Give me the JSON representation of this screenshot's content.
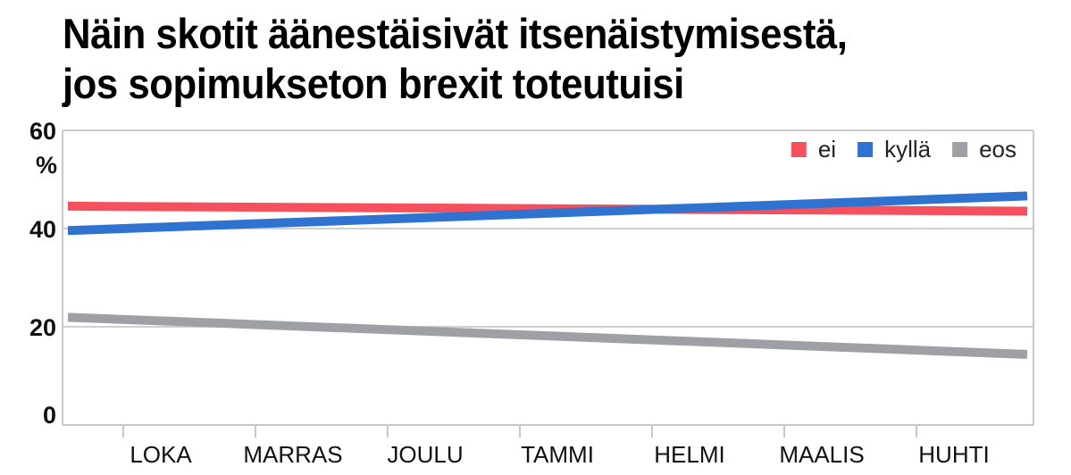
{
  "title_line1": "Näin skotit äänestäisivät itsenäistymisestä,",
  "title_line2": "jos sopimukseton brexit toteutuisi",
  "chart_data": {
    "type": "line",
    "title": "Näin skotit äänestäisivät itsenäistymisestä, jos sopimukseton brexit toteutuisi",
    "xlabel": "",
    "ylabel": "%",
    "ylim": [
      0,
      60
    ],
    "yticks": [
      "0",
      "20",
      "40",
      "60"
    ],
    "categories": [
      "LOKA",
      "MARRAS",
      "JOULU",
      "TAMMI",
      "HELMI",
      "MAALIS",
      "HUHTI"
    ],
    "grid": true,
    "legend_position": "top-right",
    "series": [
      {
        "name": "ei",
        "color": "#f5505e",
        "x": [
          0,
          7.2
        ],
        "values": [
          44.5,
          43.5
        ]
      },
      {
        "name": "kyllä",
        "color": "#2f72cf",
        "x": [
          0,
          7.2
        ],
        "values": [
          40,
          47
        ]
      },
      {
        "name": "eos",
        "color": "#9ea0a6",
        "x": [
          0,
          7.2
        ],
        "values": [
          21.5,
          14
        ]
      }
    ]
  }
}
